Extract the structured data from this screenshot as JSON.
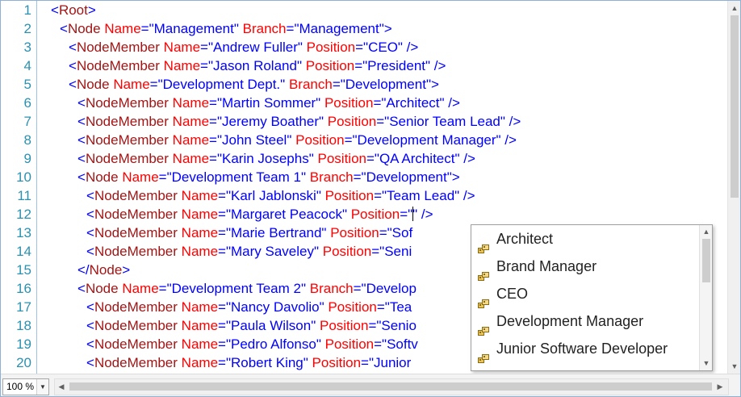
{
  "gutter": {
    "line_numbers": [
      "1",
      "2",
      "3",
      "4",
      "5",
      "6",
      "7",
      "8",
      "9",
      "10",
      "11",
      "12",
      "13",
      "14",
      "15",
      "16",
      "17",
      "18",
      "19",
      "20"
    ]
  },
  "code": {
    "lines": [
      [
        [
          "b",
          "<"
        ],
        [
          "t",
          "Root"
        ],
        [
          "b",
          ">"
        ]
      ],
      [
        [
          "b",
          "<"
        ],
        [
          "t",
          "Node"
        ],
        [
          "p",
          " "
        ],
        [
          "a",
          "Name"
        ],
        [
          "b",
          "=\"Management\""
        ],
        [
          "p",
          " "
        ],
        [
          "a",
          "Branch"
        ],
        [
          "b",
          "=\"Management\">"
        ]
      ],
      [
        [
          "b",
          "<"
        ],
        [
          "t",
          "NodeMember"
        ],
        [
          "p",
          " "
        ],
        [
          "a",
          "Name"
        ],
        [
          "b",
          "=\"Andrew Fuller\""
        ],
        [
          "p",
          " "
        ],
        [
          "a",
          "Position"
        ],
        [
          "b",
          "=\"CEO\" />"
        ]
      ],
      [
        [
          "b",
          "<"
        ],
        [
          "t",
          "NodeMember"
        ],
        [
          "p",
          " "
        ],
        [
          "a",
          "Name"
        ],
        [
          "b",
          "=\"Jason Roland\""
        ],
        [
          "p",
          " "
        ],
        [
          "a",
          "Position"
        ],
        [
          "b",
          "=\"President\" />"
        ]
      ],
      [
        [
          "b",
          "<"
        ],
        [
          "t",
          "Node"
        ],
        [
          "p",
          " "
        ],
        [
          "a",
          "Name"
        ],
        [
          "b",
          "=\"Development Dept.\""
        ],
        [
          "p",
          " "
        ],
        [
          "a",
          "Branch"
        ],
        [
          "b",
          "=\"Development\">"
        ]
      ],
      [
        [
          "b",
          "<"
        ],
        [
          "t",
          "NodeMember"
        ],
        [
          "p",
          " "
        ],
        [
          "a",
          "Name"
        ],
        [
          "b",
          "=\"Martin Sommer\""
        ],
        [
          "p",
          " "
        ],
        [
          "a",
          "Position"
        ],
        [
          "b",
          "=\"Architect\" />"
        ]
      ],
      [
        [
          "b",
          "<"
        ],
        [
          "t",
          "NodeMember"
        ],
        [
          "p",
          " "
        ],
        [
          "a",
          "Name"
        ],
        [
          "b",
          "=\"Jeremy Boather\""
        ],
        [
          "p",
          " "
        ],
        [
          "a",
          "Position"
        ],
        [
          "b",
          "=\"Senior Team Lead\" />"
        ]
      ],
      [
        [
          "b",
          "<"
        ],
        [
          "t",
          "NodeMember"
        ],
        [
          "p",
          " "
        ],
        [
          "a",
          "Name"
        ],
        [
          "b",
          "=\"John Steel\""
        ],
        [
          "p",
          " "
        ],
        [
          "a",
          "Position"
        ],
        [
          "b",
          "=\"Development Manager\" />"
        ]
      ],
      [
        [
          "b",
          "<"
        ],
        [
          "t",
          "NodeMember"
        ],
        [
          "p",
          " "
        ],
        [
          "a",
          "Name"
        ],
        [
          "b",
          "=\"Karin Josephs\""
        ],
        [
          "p",
          " "
        ],
        [
          "a",
          "Position"
        ],
        [
          "b",
          "=\"QA Architect\" />"
        ]
      ],
      [
        [
          "b",
          "<"
        ],
        [
          "t",
          "Node"
        ],
        [
          "p",
          " "
        ],
        [
          "a",
          "Name"
        ],
        [
          "b",
          "=\"Development Team 1\""
        ],
        [
          "p",
          " "
        ],
        [
          "a",
          "Branch"
        ],
        [
          "b",
          "=\"Development\">"
        ]
      ],
      [
        [
          "b",
          "<"
        ],
        [
          "t",
          "NodeMember"
        ],
        [
          "p",
          " "
        ],
        [
          "a",
          "Name"
        ],
        [
          "b",
          "=\"Karl Jablonski\""
        ],
        [
          "p",
          " "
        ],
        [
          "a",
          "Position"
        ],
        [
          "b",
          "=\"Team Lead\" />"
        ]
      ],
      [
        [
          "b",
          "<"
        ],
        [
          "t",
          "NodeMember"
        ],
        [
          "p",
          " "
        ],
        [
          "a",
          "Name"
        ],
        [
          "b",
          "=\"Margaret Peacock\""
        ],
        [
          "p",
          " "
        ],
        [
          "a",
          "Position"
        ],
        [
          "b",
          "=\""
        ],
        [
          "c",
          ""
        ],
        [
          "b",
          "\" />"
        ]
      ],
      [
        [
          "b",
          "<"
        ],
        [
          "t",
          "NodeMember"
        ],
        [
          "p",
          " "
        ],
        [
          "a",
          "Name"
        ],
        [
          "b",
          "=\"Marie Bertrand\""
        ],
        [
          "p",
          " "
        ],
        [
          "a",
          "Position"
        ],
        [
          "b",
          "=\"Sof"
        ]
      ],
      [
        [
          "b",
          "<"
        ],
        [
          "t",
          "NodeMember"
        ],
        [
          "p",
          " "
        ],
        [
          "a",
          "Name"
        ],
        [
          "b",
          "=\"Mary Saveley\""
        ],
        [
          "p",
          " "
        ],
        [
          "a",
          "Position"
        ],
        [
          "b",
          "=\"Seni"
        ]
      ],
      [
        [
          "b",
          "</"
        ],
        [
          "t",
          "Node"
        ],
        [
          "b",
          ">"
        ]
      ],
      [
        [
          "b",
          "<"
        ],
        [
          "t",
          "Node"
        ],
        [
          "p",
          " "
        ],
        [
          "a",
          "Name"
        ],
        [
          "b",
          "=\"Development Team 2\""
        ],
        [
          "p",
          " "
        ],
        [
          "a",
          "Branch"
        ],
        [
          "b",
          "=\"Develop"
        ]
      ],
      [
        [
          "b",
          "<"
        ],
        [
          "t",
          "NodeMember"
        ],
        [
          "p",
          " "
        ],
        [
          "a",
          "Name"
        ],
        [
          "b",
          "=\"Nancy Davolio\""
        ],
        [
          "p",
          " "
        ],
        [
          "a",
          "Position"
        ],
        [
          "b",
          "=\"Tea"
        ]
      ],
      [
        [
          "b",
          "<"
        ],
        [
          "t",
          "NodeMember"
        ],
        [
          "p",
          " "
        ],
        [
          "a",
          "Name"
        ],
        [
          "b",
          "=\"Paula Wilson\""
        ],
        [
          "p",
          " "
        ],
        [
          "a",
          "Position"
        ],
        [
          "b",
          "=\"Senio"
        ]
      ],
      [
        [
          "b",
          "<"
        ],
        [
          "t",
          "NodeMember"
        ],
        [
          "p",
          " "
        ],
        [
          "a",
          "Name"
        ],
        [
          "b",
          "=\"Pedro Alfonso\""
        ],
        [
          "p",
          " "
        ],
        [
          "a",
          "Position"
        ],
        [
          "b",
          "=\"Softv"
        ]
      ],
      [
        [
          "b",
          "<"
        ],
        [
          "t",
          "NodeMember"
        ],
        [
          "p",
          " "
        ],
        [
          "a",
          "Name"
        ],
        [
          "b",
          "=\"Robert King\""
        ],
        [
          "p",
          " "
        ],
        [
          "a",
          "Position"
        ],
        [
          "b",
          "=\"Junior"
        ]
      ]
    ],
    "indents": [
      0,
      1,
      2,
      2,
      2,
      3,
      3,
      3,
      3,
      3,
      4,
      4,
      4,
      4,
      3,
      3,
      4,
      4,
      4,
      4
    ]
  },
  "autocomplete": {
    "items": [
      {
        "label": "Architect",
        "icon": "property-icon"
      },
      {
        "label": "Brand Manager",
        "icon": "property-icon"
      },
      {
        "label": "CEO",
        "icon": "property-icon"
      },
      {
        "label": "Development Manager",
        "icon": "property-icon"
      },
      {
        "label": "Junior Software Developer",
        "icon": "property-icon"
      }
    ]
  },
  "statusbar": {
    "zoom": "100 %"
  },
  "colors": {
    "bracket": "#0000ff",
    "tag": "#a31515",
    "attribute": "#ff0000",
    "value": "#0000ff",
    "line_number": "#2b91af"
  }
}
